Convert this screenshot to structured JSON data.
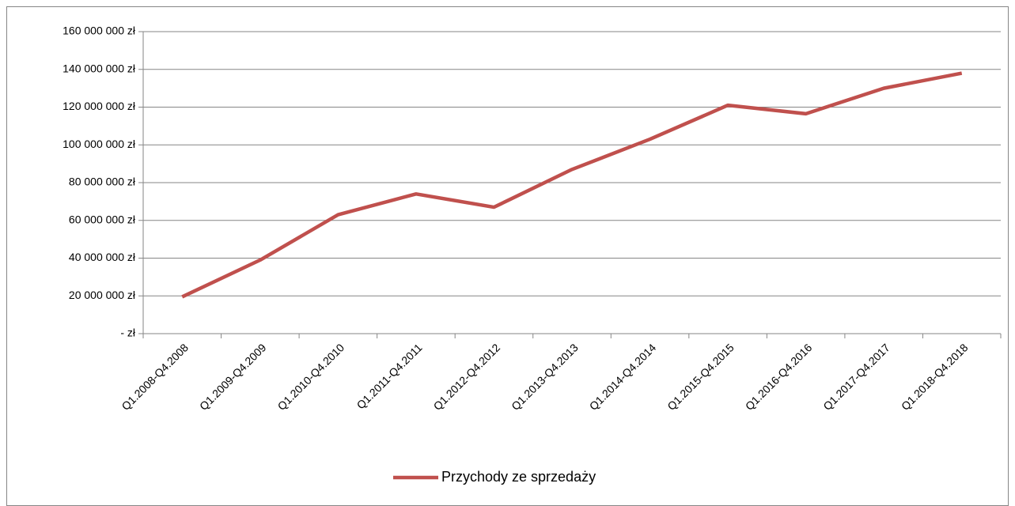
{
  "chart_data": {
    "type": "line",
    "categories": [
      "Q1.2008-Q4.2008",
      "Q1.2009-Q4.2009",
      "Q1.2010-Q4.2010",
      "Q1.2011-Q4.2011",
      "Q1.2012-Q4.2012",
      "Q1.2013-Q4.2013",
      "Q1.2014-Q4.2014",
      "Q1.2015-Q4.2015",
      "Q1.2016-Q4.2016",
      "Q1.2017-Q4.2017",
      "Q1.2018-Q4.2018"
    ],
    "series": [
      {
        "name": "Przychody ze sprzedaży",
        "color": "#c0504d",
        "values": [
          19500000,
          39000000,
          63000000,
          74000000,
          67000000,
          87000000,
          103000000,
          121000000,
          116500000,
          130000000,
          138000000
        ]
      }
    ],
    "ylim": [
      0,
      160000000
    ],
    "yticks": [
      {
        "value": 0,
        "label": "- zł"
      },
      {
        "value": 20000000,
        "label": "20 000 000 zł"
      },
      {
        "value": 40000000,
        "label": "40 000 000 zł"
      },
      {
        "value": 60000000,
        "label": "60 000 000 zł"
      },
      {
        "value": 80000000,
        "label": "80 000 000 zł"
      },
      {
        "value": 100000000,
        "label": "100 000 000 zł"
      },
      {
        "value": 120000000,
        "label": "120 000 000 zł"
      },
      {
        "value": 140000000,
        "label": "140 000 000 zł"
      },
      {
        "value": 160000000,
        "label": "160 000 000 zł"
      }
    ],
    "grid": true,
    "legend": "bottom"
  }
}
